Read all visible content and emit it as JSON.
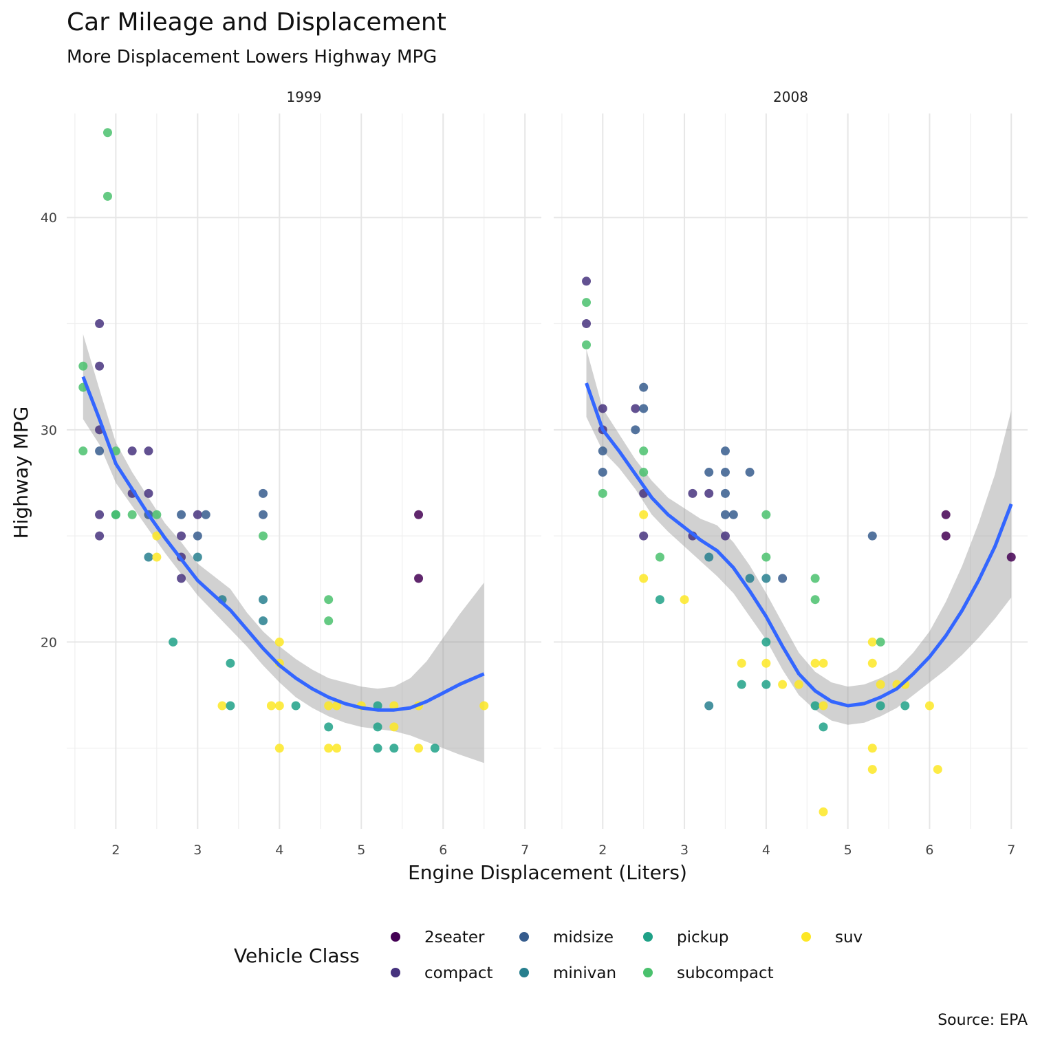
{
  "chart_data": {
    "type": "scatter",
    "title": "Car Mileage and Displacement",
    "subtitle": "More Displacement Lowers Highway MPG",
    "xlabel": "Engine Displacement (Liters)",
    "ylabel": "Highway MPG",
    "caption": "Source: EPA",
    "legend_title": "Vehicle Class",
    "legend_placement": "bottom",
    "grid": true,
    "xlim": [
      1.4,
      7.2
    ],
    "ylim": [
      11.2,
      44.9
    ],
    "x_ticks": [
      2,
      3,
      4,
      5,
      6,
      7
    ],
    "y_ticks": [
      20,
      30,
      40
    ],
    "classes": [
      {
        "name": "2seater",
        "color": "#440154"
      },
      {
        "name": "compact",
        "color": "#46337e"
      },
      {
        "name": "midsize",
        "color": "#365c8d"
      },
      {
        "name": "minivan",
        "color": "#277f8e"
      },
      {
        "name": "pickup",
        "color": "#1fa187"
      },
      {
        "name": "subcompact",
        "color": "#4ac16d"
      },
      {
        "name": "suv",
        "color": "#fde725"
      }
    ],
    "panels": [
      {
        "label": "1999",
        "points": [
          {
            "x": 1.6,
            "y": 33,
            "class": "subcompact"
          },
          {
            "x": 1.6,
            "y": 32,
            "class": "subcompact"
          },
          {
            "x": 1.6,
            "y": 29,
            "class": "subcompact"
          },
          {
            "x": 1.8,
            "y": 35,
            "class": "compact"
          },
          {
            "x": 1.8,
            "y": 33,
            "class": "compact"
          },
          {
            "x": 1.8,
            "y": 30,
            "class": "compact"
          },
          {
            "x": 1.8,
            "y": 29,
            "class": "midsize"
          },
          {
            "x": 1.8,
            "y": 26,
            "class": "compact"
          },
          {
            "x": 1.8,
            "y": 25,
            "class": "compact"
          },
          {
            "x": 1.9,
            "y": 44,
            "class": "subcompact"
          },
          {
            "x": 1.9,
            "y": 41,
            "class": "subcompact"
          },
          {
            "x": 2.0,
            "y": 29,
            "class": "subcompact"
          },
          {
            "x": 2.0,
            "y": 26,
            "class": "pickup"
          },
          {
            "x": 2.0,
            "y": 26,
            "class": "subcompact"
          },
          {
            "x": 2.2,
            "y": 29,
            "class": "compact"
          },
          {
            "x": 2.2,
            "y": 27,
            "class": "compact"
          },
          {
            "x": 2.2,
            "y": 26,
            "class": "subcompact"
          },
          {
            "x": 2.4,
            "y": 29,
            "class": "compact"
          },
          {
            "x": 2.4,
            "y": 27,
            "class": "compact"
          },
          {
            "x": 2.4,
            "y": 26,
            "class": "midsize"
          },
          {
            "x": 2.4,
            "y": 24,
            "class": "minivan"
          },
          {
            "x": 2.5,
            "y": 26,
            "class": "subcompact"
          },
          {
            "x": 2.5,
            "y": 25,
            "class": "suv"
          },
          {
            "x": 2.5,
            "y": 24,
            "class": "suv"
          },
          {
            "x": 2.7,
            "y": 20,
            "class": "pickup"
          },
          {
            "x": 2.8,
            "y": 26,
            "class": "midsize"
          },
          {
            "x": 2.8,
            "y": 25,
            "class": "compact"
          },
          {
            "x": 2.8,
            "y": 24,
            "class": "compact"
          },
          {
            "x": 2.8,
            "y": 23,
            "class": "compact"
          },
          {
            "x": 3.0,
            "y": 26,
            "class": "compact"
          },
          {
            "x": 3.0,
            "y": 25,
            "class": "midsize"
          },
          {
            "x": 3.0,
            "y": 24,
            "class": "minivan"
          },
          {
            "x": 3.1,
            "y": 26,
            "class": "midsize"
          },
          {
            "x": 3.3,
            "y": 22,
            "class": "minivan"
          },
          {
            "x": 3.3,
            "y": 17,
            "class": "suv"
          },
          {
            "x": 3.4,
            "y": 19,
            "class": "pickup"
          },
          {
            "x": 3.4,
            "y": 17,
            "class": "pickup"
          },
          {
            "x": 3.8,
            "y": 27,
            "class": "midsize"
          },
          {
            "x": 3.8,
            "y": 26,
            "class": "midsize"
          },
          {
            "x": 3.8,
            "y": 25,
            "class": "subcompact"
          },
          {
            "x": 3.8,
            "y": 22,
            "class": "minivan"
          },
          {
            "x": 3.8,
            "y": 21,
            "class": "minivan"
          },
          {
            "x": 3.9,
            "y": 17,
            "class": "suv"
          },
          {
            "x": 4.0,
            "y": 20,
            "class": "suv"
          },
          {
            "x": 4.0,
            "y": 19,
            "class": "suv"
          },
          {
            "x": 4.0,
            "y": 17,
            "class": "suv"
          },
          {
            "x": 4.0,
            "y": 15,
            "class": "suv"
          },
          {
            "x": 4.2,
            "y": 17,
            "class": "pickup"
          },
          {
            "x": 4.6,
            "y": 22,
            "class": "subcompact"
          },
          {
            "x": 4.6,
            "y": 21,
            "class": "subcompact"
          },
          {
            "x": 4.6,
            "y": 17,
            "class": "suv"
          },
          {
            "x": 4.6,
            "y": 16,
            "class": "pickup"
          },
          {
            "x": 4.6,
            "y": 15,
            "class": "suv"
          },
          {
            "x": 4.7,
            "y": 17,
            "class": "suv"
          },
          {
            "x": 4.7,
            "y": 15,
            "class": "suv"
          },
          {
            "x": 5.0,
            "y": 17,
            "class": "suv"
          },
          {
            "x": 5.2,
            "y": 17,
            "class": "pickup"
          },
          {
            "x": 5.2,
            "y": 16,
            "class": "pickup"
          },
          {
            "x": 5.2,
            "y": 15,
            "class": "pickup"
          },
          {
            "x": 5.4,
            "y": 17,
            "class": "suv"
          },
          {
            "x": 5.4,
            "y": 16,
            "class": "suv"
          },
          {
            "x": 5.4,
            "y": 15,
            "class": "pickup"
          },
          {
            "x": 5.7,
            "y": 26,
            "class": "2seater"
          },
          {
            "x": 5.7,
            "y": 23,
            "class": "2seater"
          },
          {
            "x": 5.7,
            "y": 17,
            "class": "suv"
          },
          {
            "x": 5.7,
            "y": 15,
            "class": "suv"
          },
          {
            "x": 5.9,
            "y": 15,
            "class": "pickup"
          },
          {
            "x": 6.5,
            "y": 17,
            "class": "suv"
          }
        ],
        "smooth": {
          "x": [
            1.6,
            1.8,
            2.0,
            2.2,
            2.4,
            2.6,
            2.8,
            3.0,
            3.2,
            3.4,
            3.6,
            3.8,
            4.0,
            4.2,
            4.4,
            4.6,
            4.8,
            5.0,
            5.2,
            5.4,
            5.6,
            5.8,
            6.0,
            6.2,
            6.5
          ],
          "y": [
            32.5,
            30.5,
            28.4,
            27.2,
            26.0,
            24.9,
            23.9,
            22.9,
            22.2,
            21.5,
            20.6,
            19.7,
            18.9,
            18.3,
            17.8,
            17.4,
            17.1,
            16.9,
            16.8,
            16.8,
            16.9,
            17.2,
            17.6,
            18.0,
            18.5
          ],
          "lower": [
            30.5,
            29.3,
            27.5,
            26.4,
            25.3,
            24.2,
            23.2,
            22.2,
            21.4,
            20.6,
            19.8,
            18.9,
            18.1,
            17.4,
            16.9,
            16.5,
            16.2,
            16.0,
            15.9,
            15.8,
            15.6,
            15.3,
            15.0,
            14.7,
            14.3
          ],
          "upper": [
            34.5,
            31.9,
            29.4,
            28.0,
            26.8,
            25.6,
            24.7,
            23.7,
            23.1,
            22.5,
            21.4,
            20.5,
            19.8,
            19.2,
            18.7,
            18.3,
            18.1,
            17.9,
            17.8,
            17.9,
            18.3,
            19.1,
            20.2,
            21.3,
            22.8
          ]
        }
      },
      {
        "label": "2008",
        "points": [
          {
            "x": 1.8,
            "y": 37,
            "class": "compact"
          },
          {
            "x": 1.8,
            "y": 36,
            "class": "subcompact"
          },
          {
            "x": 1.8,
            "y": 35,
            "class": "compact"
          },
          {
            "x": 1.8,
            "y": 34,
            "class": "subcompact"
          },
          {
            "x": 2.0,
            "y": 31,
            "class": "compact"
          },
          {
            "x": 2.0,
            "y": 30,
            "class": "compact"
          },
          {
            "x": 2.0,
            "y": 29,
            "class": "midsize"
          },
          {
            "x": 2.0,
            "y": 28,
            "class": "midsize"
          },
          {
            "x": 2.0,
            "y": 27,
            "class": "subcompact"
          },
          {
            "x": 2.4,
            "y": 31,
            "class": "compact"
          },
          {
            "x": 2.4,
            "y": 30,
            "class": "midsize"
          },
          {
            "x": 2.5,
            "y": 32,
            "class": "midsize"
          },
          {
            "x": 2.5,
            "y": 31,
            "class": "midsize"
          },
          {
            "x": 2.5,
            "y": 29,
            "class": "subcompact"
          },
          {
            "x": 2.5,
            "y": 28,
            "class": "subcompact"
          },
          {
            "x": 2.5,
            "y": 27,
            "class": "compact"
          },
          {
            "x": 2.5,
            "y": 26,
            "class": "suv"
          },
          {
            "x": 2.5,
            "y": 25,
            "class": "compact"
          },
          {
            "x": 2.5,
            "y": 23,
            "class": "suv"
          },
          {
            "x": 2.7,
            "y": 24,
            "class": "subcompact"
          },
          {
            "x": 2.7,
            "y": 22,
            "class": "pickup"
          },
          {
            "x": 3.0,
            "y": 22,
            "class": "suv"
          },
          {
            "x": 3.1,
            "y": 27,
            "class": "compact"
          },
          {
            "x": 3.1,
            "y": 25,
            "class": "compact"
          },
          {
            "x": 3.3,
            "y": 28,
            "class": "midsize"
          },
          {
            "x": 3.3,
            "y": 27,
            "class": "compact"
          },
          {
            "x": 3.3,
            "y": 24,
            "class": "minivan"
          },
          {
            "x": 3.3,
            "y": 17,
            "class": "minivan"
          },
          {
            "x": 3.5,
            "y": 29,
            "class": "midsize"
          },
          {
            "x": 3.5,
            "y": 28,
            "class": "midsize"
          },
          {
            "x": 3.5,
            "y": 27,
            "class": "midsize"
          },
          {
            "x": 3.5,
            "y": 26,
            "class": "midsize"
          },
          {
            "x": 3.5,
            "y": 25,
            "class": "compact"
          },
          {
            "x": 3.6,
            "y": 26,
            "class": "midsize"
          },
          {
            "x": 3.7,
            "y": 19,
            "class": "suv"
          },
          {
            "x": 3.7,
            "y": 18,
            "class": "pickup"
          },
          {
            "x": 3.8,
            "y": 28,
            "class": "midsize"
          },
          {
            "x": 3.8,
            "y": 23,
            "class": "minivan"
          },
          {
            "x": 4.0,
            "y": 26,
            "class": "subcompact"
          },
          {
            "x": 4.0,
            "y": 24,
            "class": "subcompact"
          },
          {
            "x": 4.0,
            "y": 23,
            "class": "minivan"
          },
          {
            "x": 4.0,
            "y": 20,
            "class": "pickup"
          },
          {
            "x": 4.0,
            "y": 19,
            "class": "suv"
          },
          {
            "x": 4.0,
            "y": 18,
            "class": "pickup"
          },
          {
            "x": 4.2,
            "y": 23,
            "class": "midsize"
          },
          {
            "x": 4.2,
            "y": 18,
            "class": "suv"
          },
          {
            "x": 4.4,
            "y": 18,
            "class": "suv"
          },
          {
            "x": 4.6,
            "y": 23,
            "class": "subcompact"
          },
          {
            "x": 4.6,
            "y": 22,
            "class": "subcompact"
          },
          {
            "x": 4.6,
            "y": 19,
            "class": "suv"
          },
          {
            "x": 4.6,
            "y": 17,
            "class": "pickup"
          },
          {
            "x": 4.7,
            "y": 19,
            "class": "suv"
          },
          {
            "x": 4.7,
            "y": 17,
            "class": "suv"
          },
          {
            "x": 4.7,
            "y": 16,
            "class": "pickup"
          },
          {
            "x": 4.7,
            "y": 12,
            "class": "suv"
          },
          {
            "x": 5.3,
            "y": 25,
            "class": "midsize"
          },
          {
            "x": 5.3,
            "y": 20,
            "class": "suv"
          },
          {
            "x": 5.3,
            "y": 19,
            "class": "suv"
          },
          {
            "x": 5.3,
            "y": 15,
            "class": "suv"
          },
          {
            "x": 5.3,
            "y": 14,
            "class": "suv"
          },
          {
            "x": 5.4,
            "y": 20,
            "class": "subcompact"
          },
          {
            "x": 5.4,
            "y": 18,
            "class": "suv"
          },
          {
            "x": 5.4,
            "y": 17,
            "class": "pickup"
          },
          {
            "x": 5.6,
            "y": 18,
            "class": "suv"
          },
          {
            "x": 5.7,
            "y": 18,
            "class": "suv"
          },
          {
            "x": 5.7,
            "y": 17,
            "class": "pickup"
          },
          {
            "x": 6.0,
            "y": 17,
            "class": "suv"
          },
          {
            "x": 6.1,
            "y": 14,
            "class": "suv"
          },
          {
            "x": 6.2,
            "y": 26,
            "class": "2seater"
          },
          {
            "x": 6.2,
            "y": 25,
            "class": "2seater"
          },
          {
            "x": 7.0,
            "y": 24,
            "class": "2seater"
          }
        ],
        "smooth": {
          "x": [
            1.8,
            2.0,
            2.2,
            2.4,
            2.6,
            2.8,
            3.0,
            3.2,
            3.4,
            3.6,
            3.8,
            4.0,
            4.2,
            4.4,
            4.6,
            4.8,
            5.0,
            5.2,
            5.4,
            5.6,
            5.8,
            6.0,
            6.2,
            6.4,
            6.6,
            6.8,
            7.0
          ],
          "y": [
            32.2,
            30.0,
            29.0,
            27.9,
            26.8,
            26.0,
            25.4,
            24.8,
            24.3,
            23.5,
            22.4,
            21.2,
            19.8,
            18.5,
            17.7,
            17.2,
            17.0,
            17.1,
            17.4,
            17.8,
            18.5,
            19.3,
            20.3,
            21.5,
            22.9,
            24.5,
            26.5
          ],
          "lower": [
            30.6,
            29.0,
            28.2,
            27.2,
            26.0,
            25.2,
            24.5,
            23.8,
            23.1,
            22.3,
            21.2,
            20.1,
            18.7,
            17.5,
            16.8,
            16.3,
            16.1,
            16.2,
            16.5,
            16.9,
            17.5,
            18.1,
            18.7,
            19.4,
            20.2,
            21.1,
            22.1
          ],
          "upper": [
            33.8,
            31.0,
            29.8,
            28.6,
            27.6,
            26.8,
            26.3,
            25.8,
            25.5,
            24.7,
            23.6,
            22.3,
            20.9,
            19.5,
            18.6,
            18.1,
            17.9,
            18.0,
            18.3,
            18.7,
            19.5,
            20.5,
            21.9,
            23.6,
            25.6,
            27.9,
            30.9
          ]
        }
      }
    ]
  }
}
